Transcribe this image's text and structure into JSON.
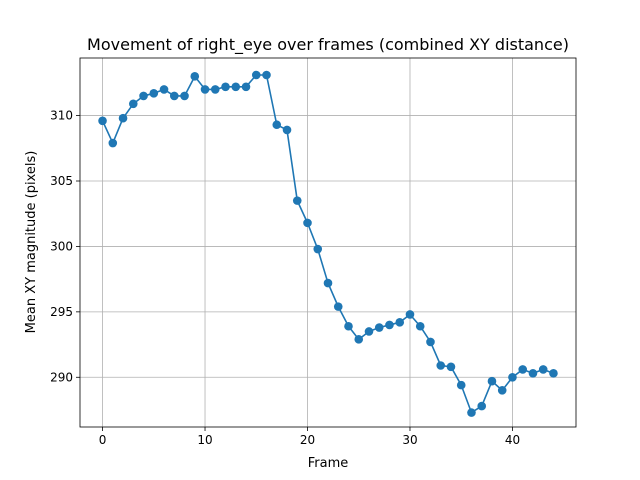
{
  "chart_data": {
    "type": "line",
    "title": "Movement of right_eye over frames (combined XY distance)",
    "xlabel": "Frame",
    "ylabel": "Mean XY magnitude (pixels)",
    "xlim": [
      -2.2,
      46.2
    ],
    "ylim": [
      286.2,
      314.4
    ],
    "xticks": [
      0,
      10,
      20,
      30,
      40
    ],
    "yticks": [
      290,
      295,
      300,
      305,
      310
    ],
    "grid": true,
    "marker": "circle",
    "color": "#1f77b4",
    "series": [
      {
        "x": [
          0,
          1,
          2,
          3,
          4,
          5,
          6,
          7,
          8,
          9,
          10,
          11,
          12,
          13,
          14,
          15,
          16,
          17,
          18,
          19,
          20,
          21,
          22,
          23,
          24,
          25,
          26,
          27,
          28,
          29,
          30,
          31,
          32,
          33,
          34,
          35,
          36,
          37,
          38,
          39,
          40,
          41,
          42,
          43,
          44
        ],
        "values": [
          309.6,
          307.9,
          309.8,
          310.9,
          311.5,
          311.7,
          312.0,
          311.5,
          311.5,
          313.0,
          312.0,
          312.0,
          312.2,
          312.2,
          312.2,
          313.1,
          313.1,
          309.3,
          308.9,
          303.5,
          301.8,
          299.8,
          297.2,
          295.4,
          293.9,
          292.9,
          293.5,
          293.8,
          294.0,
          294.2,
          294.8,
          293.9,
          292.7,
          290.9,
          290.8,
          289.4,
          287.3,
          287.8,
          289.7,
          289.0,
          290.0,
          290.6,
          290.3,
          290.6,
          290.3
        ]
      }
    ]
  }
}
